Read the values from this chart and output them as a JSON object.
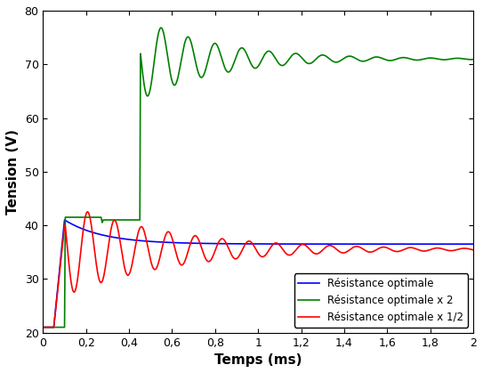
{
  "title": "",
  "xlabel": "Temps (ms)",
  "ylabel": "Tension (V)",
  "xlim": [
    0,
    2
  ],
  "ylim": [
    20,
    80
  ],
  "xticks": [
    0,
    0.2,
    0.4,
    0.6,
    0.8,
    1.0,
    1.2,
    1.4,
    1.6,
    1.8,
    2.0
  ],
  "yticks": [
    20,
    30,
    40,
    50,
    60,
    70,
    80
  ],
  "xtick_labels": [
    "0",
    "0,2",
    "0,4",
    "0,6",
    "0,8",
    "1",
    "1,2",
    "1,4",
    "1,6",
    "1,8",
    "2"
  ],
  "ytick_labels": [
    "20",
    "30",
    "40",
    "50",
    "60",
    "70",
    "80"
  ],
  "colors": {
    "blue": "#0000ff",
    "green": "#008000",
    "red": "#ff0000"
  },
  "legend": [
    "Résistance optimale",
    "Résistance optimale x 2",
    "Résistance optimale x 1/2"
  ],
  "linewidth": 1.2,
  "figsize": [
    5.43,
    4.19
  ],
  "dpi": 100
}
